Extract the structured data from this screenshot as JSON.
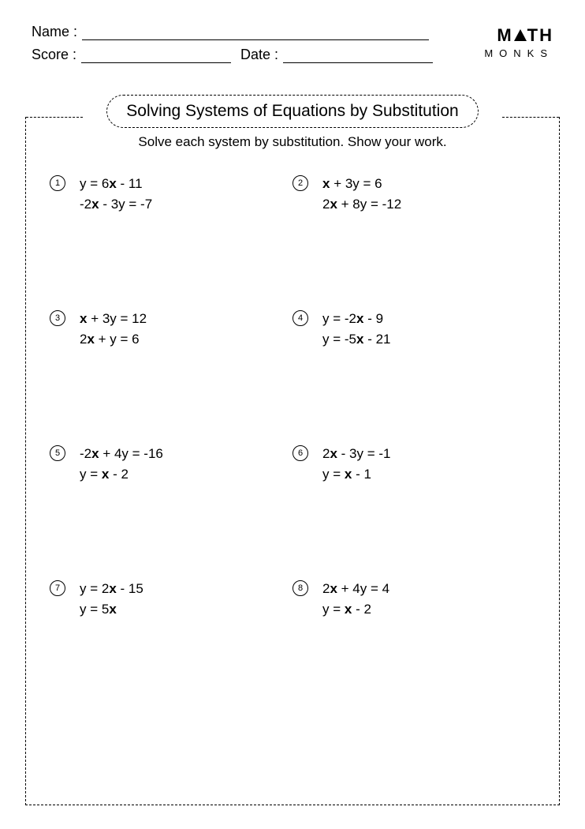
{
  "header": {
    "name_label": "Name :",
    "score_label": "Score :",
    "date_label": "Date :"
  },
  "logo": {
    "top_left": "M",
    "top_right": "TH",
    "bottom": "MONKS"
  },
  "title": "Solving Systems of Equations by Substitution",
  "instruction": "Solve each system by substitution. Show your work.",
  "problems": [
    {
      "n": "1",
      "eq1": "y = 6x - 11",
      "eq2": "-2x - 3y = -7"
    },
    {
      "n": "2",
      "eq1": "x + 3y = 6",
      "eq2": "2x + 8y = -12"
    },
    {
      "n": "3",
      "eq1": "x + 3y = 12",
      "eq2": "2x + y = 6"
    },
    {
      "n": "4",
      "eq1": "y = -2x - 9",
      "eq2": "y = -5x - 21"
    },
    {
      "n": "5",
      "eq1": "-2x + 4y = -16",
      "eq2": "y = x - 2"
    },
    {
      "n": "6",
      "eq1": "2x - 3y = -1",
      "eq2": "y = x - 1"
    },
    {
      "n": "7",
      "eq1": "y = 2x - 15",
      "eq2": "y = 5x"
    },
    {
      "n": "8",
      "eq1": "2x + 4y = 4",
      "eq2": "y = x - 2"
    }
  ]
}
